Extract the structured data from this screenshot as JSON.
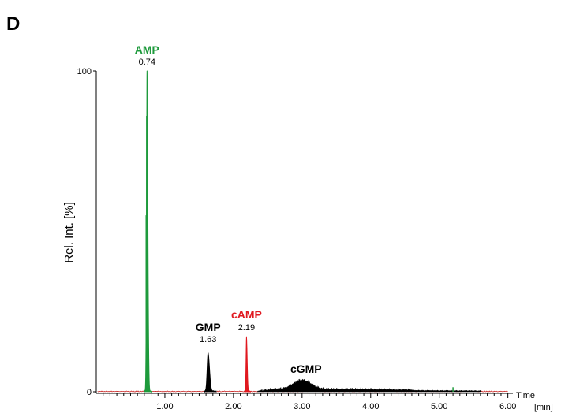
{
  "panel_label": "D",
  "colors": {
    "amp": "#1e9a3c",
    "camp": "#e0181f",
    "gmp": "#000000",
    "cgmp": "#000000",
    "baseline_red": "#c8201e",
    "axis": "#000000"
  },
  "chart_data": {
    "type": "line",
    "title": "",
    "xlabel": "Time",
    "xunit": "[min]",
    "ylabel": "Rel. Int. [%]",
    "xlim": [
      0.0,
      6.05
    ],
    "ylim": [
      0,
      100
    ],
    "x_tick_labels": [
      "1.00",
      "2.00",
      "3.00",
      "4.00",
      "5.00",
      "6.00"
    ],
    "x_tick_values": [
      1.0,
      2.0,
      3.0,
      4.0,
      5.0,
      6.0
    ],
    "y_tick_labels": [
      "0",
      "100"
    ],
    "y_tick_values": [
      0,
      100
    ],
    "grid": false,
    "peaks": [
      {
        "name": "AMP",
        "rt_label": "0.74",
        "rt": 0.74,
        "height": 100,
        "color_key": "amp"
      },
      {
        "name": "GMP",
        "rt_label": "1.63",
        "rt": 1.63,
        "height": 12,
        "color_key": "gmp"
      },
      {
        "name": "cAMP",
        "rt_label": "2.19",
        "rt": 2.19,
        "height": 17,
        "color_key": "camp"
      },
      {
        "name": "cGMP",
        "rt_label": "",
        "rt": 3.0,
        "height": 3,
        "color_key": "cgmp"
      }
    ]
  }
}
